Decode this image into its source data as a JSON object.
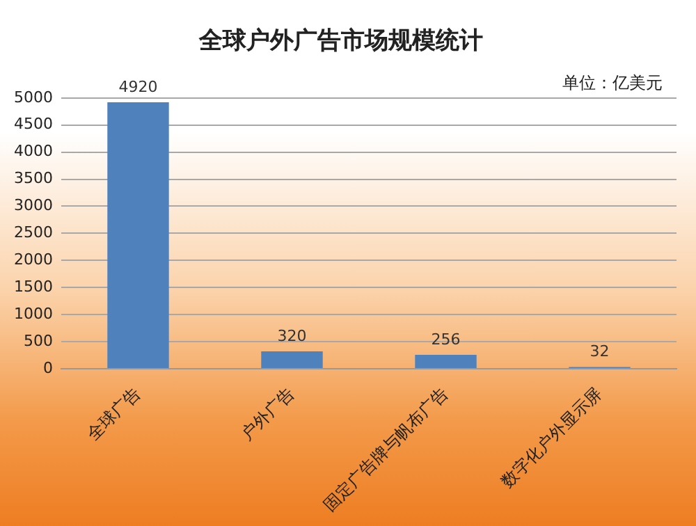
{
  "chart_data": {
    "type": "bar",
    "title": "全球户外广告市场规模统计",
    "categories": [
      "全球广告",
      "户外广告",
      "固定广告牌与帆布广告",
      "数字化户外显示屏"
    ],
    "values": [
      4920,
      320,
      256,
      32
    ],
    "color": "#4f81bd",
    "ylim": [
      0,
      5000
    ],
    "yticks": [
      0,
      500,
      1000,
      1500,
      2000,
      2500,
      3000,
      3500,
      4000,
      4500,
      5000
    ],
    "grid": "y",
    "data_labels": true,
    "legend": false,
    "annotations": [
      "单位：亿美元"
    ]
  }
}
